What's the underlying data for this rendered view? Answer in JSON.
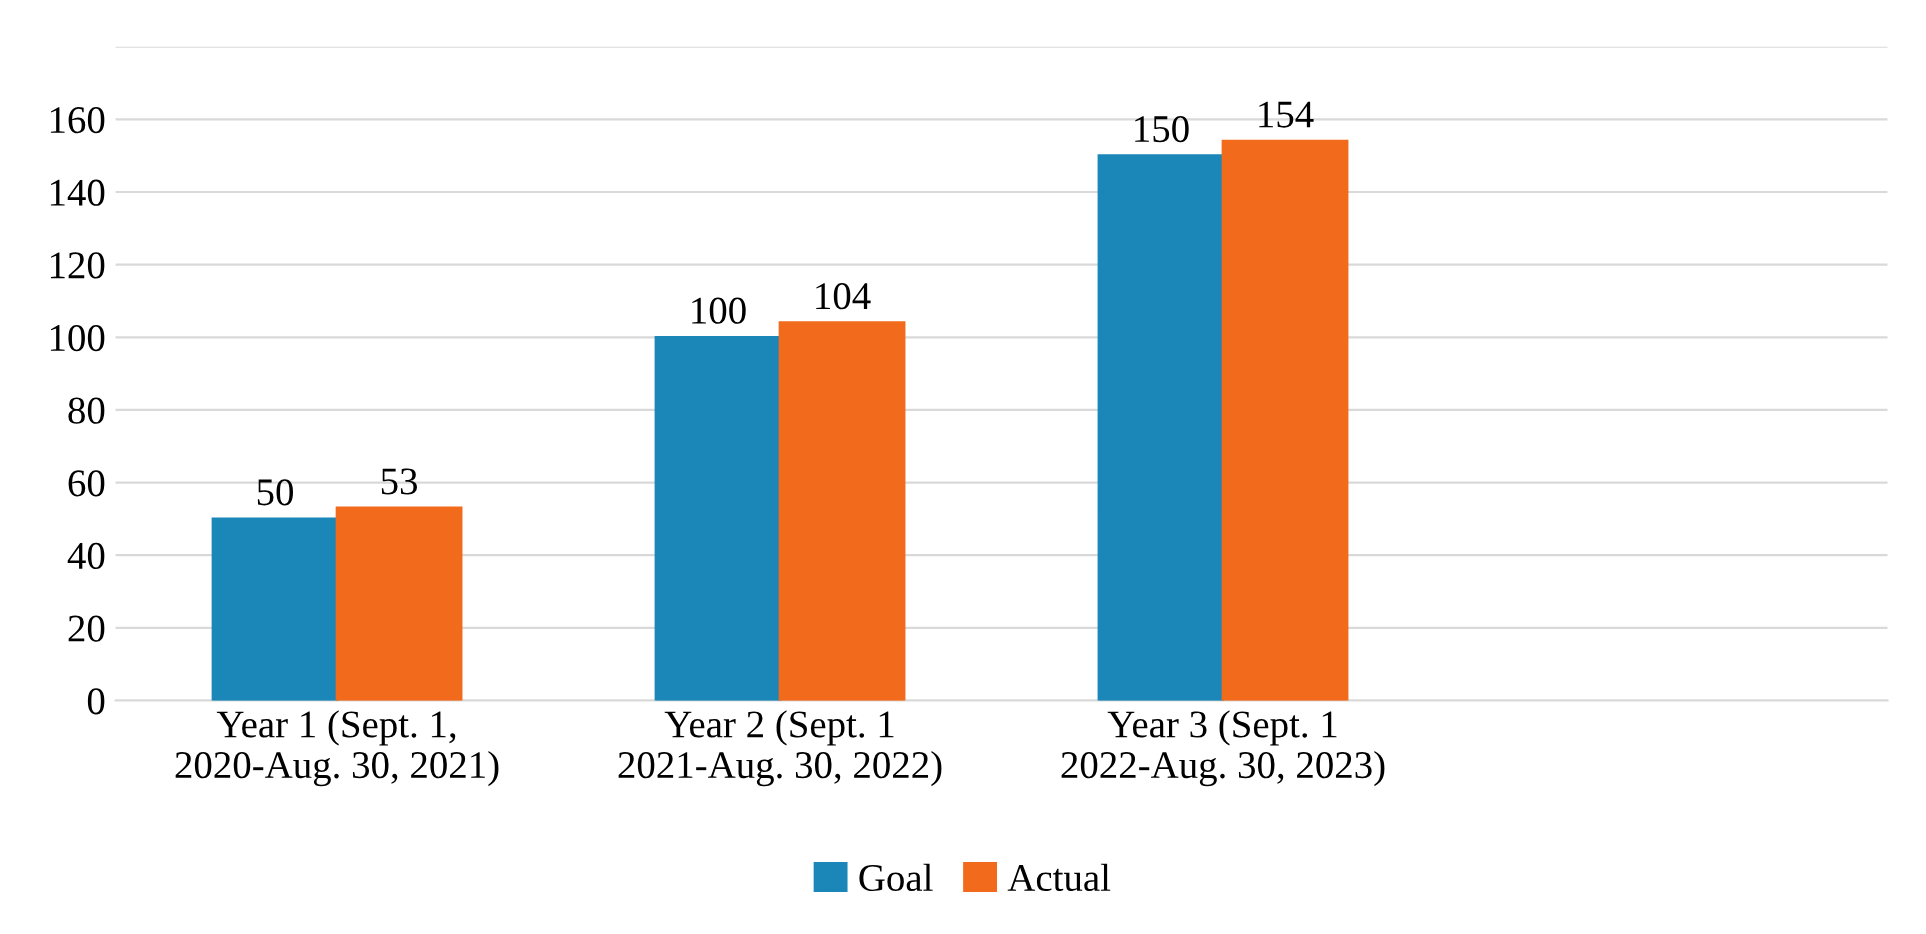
{
  "chart_data": {
    "type": "bar",
    "categories": [
      "Year 1 (Sept. 1,\n2020-Aug. 30, 2021)",
      "Year 2 (Sept. 1\n2021-Aug. 30, 2022)",
      "Year 3 (Sept. 1\n2022-Aug. 30, 2023)"
    ],
    "series": [
      {
        "name": "Goal",
        "color": "#1a87b8",
        "values": [
          50,
          100,
          150
        ]
      },
      {
        "name": "Actual",
        "color": "#f26a1b",
        "values": [
          53,
          104,
          154
        ]
      }
    ],
    "ylim": [
      0,
      180
    ],
    "yticks": [
      0,
      20,
      40,
      60,
      80,
      100,
      120,
      140,
      160
    ],
    "grid": "y",
    "legend": "bottom",
    "data_labels": true
  }
}
